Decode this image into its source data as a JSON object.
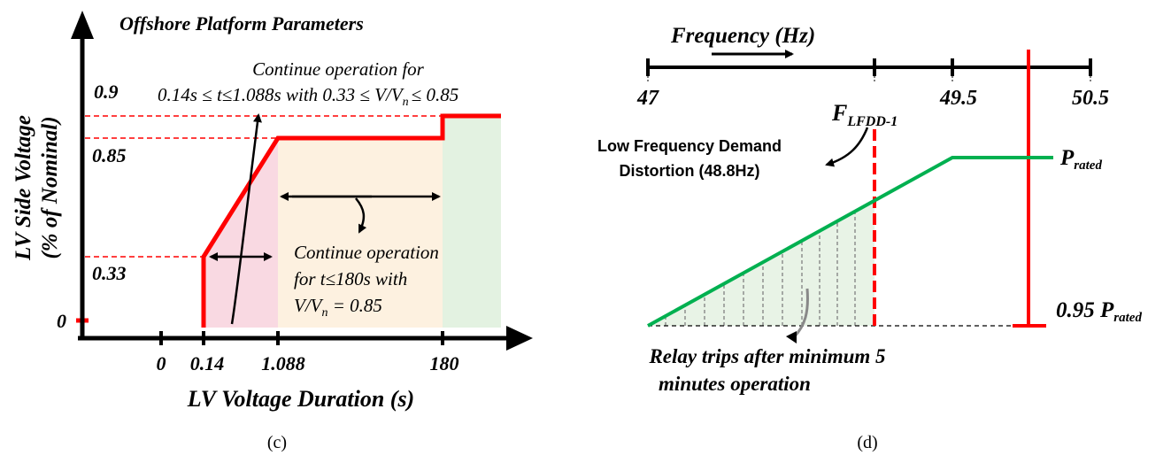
{
  "panel_c": {
    "title": "Offshore Platform Parameters",
    "ylabel_line1": "LV Side Voltage",
    "ylabel_line2": "(% of Nominal)",
    "xlabel": "LV Voltage Duration (s)",
    "y_ticks": [
      "0.9",
      "0.85",
      "0.33",
      "0"
    ],
    "x_ticks": [
      "0",
      "0.14",
      "1.088",
      "180"
    ],
    "annotation_top_line1": "Continue operation for",
    "annotation_top_line2": "0.14s ≤ t≤1.088s with 0.33 ≤ V/V",
    "annotation_top_sub": "n",
    "annotation_top_tail": "≤ 0.85",
    "annotation_mid_line1": "Continue operation",
    "annotation_mid_line2": "for t≤180s with",
    "annotation_mid_line3_a": "V/V",
    "annotation_mid_line3_sub": "n",
    "annotation_mid_line3_b": " = 0.85",
    "caption": "(c)",
    "colors": {
      "curve": "#ff0000",
      "region_1": "#f9d9e2",
      "region_2": "#fdf1e0",
      "region_3": "#e3f2e1"
    }
  },
  "panel_d": {
    "axis_title": "Frequency (Hz)",
    "ticks": [
      "47",
      "49.5",
      "50.5"
    ],
    "tick_lfdd_main": "F",
    "tick_lfdd_sub": "LFDD-1",
    "label_lfdd_line1": "Low Frequency Demand",
    "label_lfdd_line2": "Distortion (48.8Hz)",
    "p_rated_main": "P",
    "p_rated_sub": "rated",
    "p_min_main": "0.95 P",
    "p_min_sub": "rated",
    "relay_line1": "Relay trips after minimum 5",
    "relay_line2": "minutes operation",
    "caption": "(d)",
    "colors": {
      "ramp": "#00b050",
      "limit": "#ff0000",
      "hatch_fill": "#e8f3e6"
    }
  }
}
